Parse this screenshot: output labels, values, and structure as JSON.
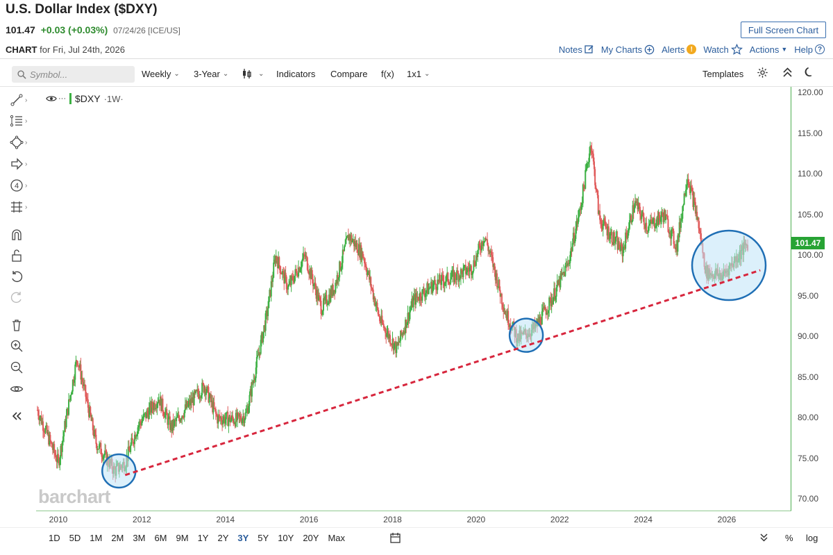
{
  "header": {
    "title": "U.S. Dollar Index ($DXY)",
    "last": "101.47",
    "change": "+0.03 (+0.03%)",
    "meta": "07/24/26 [ICE/US]",
    "fullscreen_label": "Full Screen Chart"
  },
  "chart_line": {
    "prefix": "CHART",
    "text": "for Fri, Jul 24th, 2026"
  },
  "links": {
    "notes": "Notes",
    "my_charts": "My Charts",
    "alerts": "Alerts",
    "alert_badge": "!",
    "watch": "Watch",
    "actions": "Actions",
    "help": "Help",
    "help_badge": "?"
  },
  "toolbar": {
    "symbol_placeholder": "Symbol...",
    "period": "Weekly",
    "range": "3-Year",
    "indicators": "Indicators",
    "compare": "Compare",
    "fx": "f(x)",
    "layout": "1x1",
    "templates": "Templates"
  },
  "legend": {
    "symbol": "$DXY",
    "timeframe": "·1W·",
    "dots": "···"
  },
  "last_price_tag": "101.47",
  "watermark": "barchart",
  "ranges": [
    "1D",
    "5D",
    "1M",
    "2M",
    "3M",
    "6M",
    "9M",
    "1Y",
    "2Y",
    "3Y",
    "5Y",
    "10Y",
    "20Y",
    "Max"
  ],
  "active_range": "3Y",
  "bottom_right": {
    "percent": "%",
    "log": "log"
  },
  "colors": {
    "up": "#3cb043",
    "down": "#e05a5a",
    "trendline": "#d7263d",
    "circle_fill": "#bfe3f7",
    "circle_stroke": "#1f6fb5",
    "accent": "#2b5d9c"
  },
  "chart_data": {
    "type": "candlestick",
    "symbol": "$DXY",
    "interval": "1W",
    "y_ticks": [
      "120.00",
      "115.00",
      "110.00",
      "105.00",
      "100.00",
      "95.00",
      "90.00",
      "85.00",
      "80.00",
      "75.00",
      "70.00"
    ],
    "x_ticks": [
      "2010",
      "2012",
      "2014",
      "2016",
      "2018",
      "2020",
      "2022",
      "2024",
      "2026"
    ],
    "ylim": [
      69.5,
      120.5
    ],
    "xlim": [
      2009.5,
      2027.5
    ],
    "price_path": [
      [
        2009.5,
        81
      ],
      [
        2010.0,
        74.5
      ],
      [
        2010.45,
        87.5
      ],
      [
        2010.9,
        77
      ],
      [
        2011.35,
        73.5
      ],
      [
        2011.6,
        74.5
      ],
      [
        2011.9,
        79
      ],
      [
        2012.4,
        82.5
      ],
      [
        2012.7,
        78.8
      ],
      [
        2013.1,
        81.5
      ],
      [
        2013.5,
        84
      ],
      [
        2013.8,
        80
      ],
      [
        2014.3,
        79.8
      ],
      [
        2014.5,
        80.5
      ],
      [
        2015.0,
        93
      ],
      [
        2015.2,
        100
      ],
      [
        2015.5,
        96
      ],
      [
        2015.9,
        100
      ],
      [
        2016.3,
        93.5
      ],
      [
        2016.6,
        96
      ],
      [
        2016.95,
        102.5
      ],
      [
        2017.3,
        100
      ],
      [
        2017.7,
        92
      ],
      [
        2018.1,
        88.5
      ],
      [
        2018.5,
        94.5
      ],
      [
        2019.0,
        96.5
      ],
      [
        2019.5,
        97.5
      ],
      [
        2019.9,
        98.5
      ],
      [
        2020.2,
        102.5
      ],
      [
        2020.4,
        99
      ],
      [
        2020.7,
        93
      ],
      [
        2021.0,
        89.8
      ],
      [
        2021.4,
        91
      ],
      [
        2021.8,
        94.5
      ],
      [
        2022.2,
        99
      ],
      [
        2022.5,
        106
      ],
      [
        2022.75,
        114
      ],
      [
        2022.95,
        104.5
      ],
      [
        2023.3,
        102
      ],
      [
        2023.5,
        100.5
      ],
      [
        2023.8,
        106.5
      ],
      [
        2024.1,
        103.5
      ],
      [
        2024.5,
        105
      ],
      [
        2024.8,
        101
      ],
      [
        2025.0,
        108
      ],
      [
        2025.05,
        110
      ],
      [
        2025.3,
        104.5
      ],
      [
        2025.5,
        98
      ],
      [
        2025.9,
        97.5
      ],
      [
        2026.2,
        99.5
      ],
      [
        2026.5,
        101.47
      ]
    ],
    "trendline": {
      "from": [
        2011.6,
        73.0
      ],
      "to": [
        2026.8,
        98.2
      ]
    },
    "highlight_circles": [
      {
        "x": 2011.45,
        "y": 73.5
      },
      {
        "x": 2021.2,
        "y": 90.2
      },
      {
        "x": 2026.05,
        "y": 98.8
      }
    ]
  }
}
